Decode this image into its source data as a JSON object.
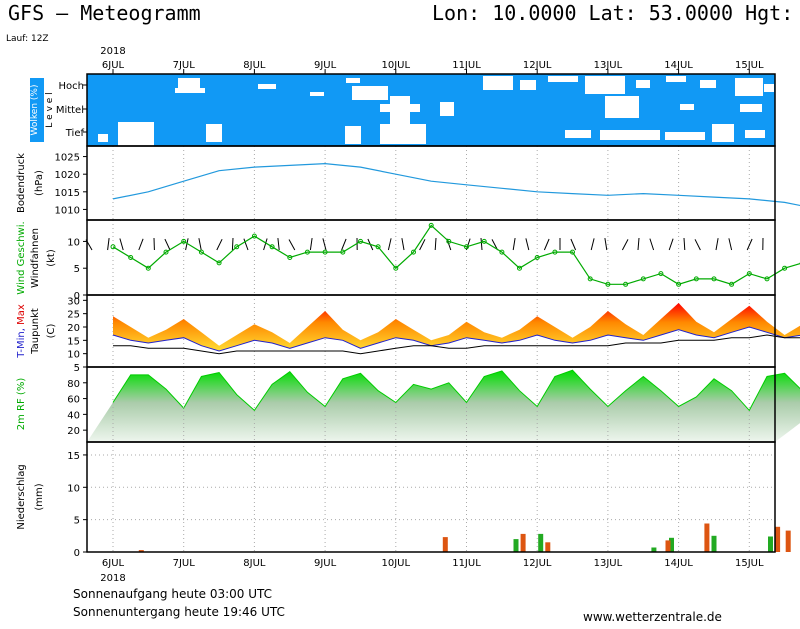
{
  "header": {
    "title": "GFS – Meteogramm",
    "coords": "Lon: 10.0000  Lat: 53.0000  Hgt: 8",
    "run": "Lauf: 12Z",
    "year_top": "2018",
    "year_bottom": "2018"
  },
  "days": [
    "6JUL",
    "7JUL",
    "8JUL",
    "9JUL",
    "10JUL",
    "11JUL",
    "12JUL",
    "13JUL",
    "14JUL",
    "15JUL"
  ],
  "footer": {
    "sunrise": "Sonnenaufgang heute 03:00 UTC",
    "sunset": "Sonnenuntergang heute 19:46 UTC",
    "website": "www.wetterzentrale.de"
  },
  "colors": {
    "cloud_bg": "#1199f5",
    "wind_green": "#00aa00",
    "pressure": "#2299dd",
    "rain_green": "#22aa22",
    "rain_orange": "#dd5511",
    "humidity_green": "#00cc00"
  },
  "chart_data": [
    {
      "type": "heatmap",
      "name": "Wolken (%)",
      "ylabel_main": "Wolken (%)",
      "ylabel_side": "L e v e l",
      "levels": [
        "Hoch",
        "Mittel",
        "Tief"
      ],
      "note": "mostly overcast; white gaps mark clear intervals"
    },
    {
      "type": "line",
      "ylabel_main": "Bodendruck",
      "ylabel_unit": "(hPa)",
      "yticks": [
        1010,
        1015,
        1020,
        1025
      ],
      "ylim": [
        1007,
        1028
      ],
      "x_days": [
        0,
        0.5,
        1.0,
        1.5,
        2.0,
        2.5,
        3.0,
        3.5,
        4.0,
        4.5,
        5.0,
        5.5,
        6.0,
        6.5,
        7.0,
        7.5,
        8.0,
        8.5,
        9.0,
        9.5,
        10.0
      ],
      "values": [
        1013,
        1015,
        1018,
        1021,
        1022,
        1022.5,
        1023,
        1022,
        1020,
        1018,
        1017,
        1016,
        1015,
        1014.5,
        1014,
        1014.5,
        1014,
        1013.5,
        1013,
        1012,
        1010
      ]
    },
    {
      "type": "line",
      "ylabel_main": "Wind Geschwi.",
      "ylabel_sub": "Windfahnen",
      "ylabel_unit": "(kt)",
      "yticks": [
        0,
        5,
        10
      ],
      "ylim": [
        0,
        14
      ],
      "x_days": [
        0,
        0.25,
        0.5,
        0.75,
        1.0,
        1.25,
        1.5,
        1.75,
        2.0,
        2.25,
        2.5,
        2.75,
        3.0,
        3.25,
        3.5,
        3.75,
        4.0,
        4.25,
        4.5,
        4.75,
        5.0,
        5.25,
        5.5,
        5.75,
        6.0,
        6.25,
        6.5,
        6.75,
        7.0,
        7.25,
        7.5,
        7.75,
        8.0,
        8.25,
        8.5,
        8.75,
        9.0,
        9.25,
        9.5,
        9.75,
        10.0
      ],
      "values": [
        9,
        7,
        5,
        8,
        10,
        8,
        6,
        9,
        11,
        9,
        7,
        8,
        8,
        8,
        10,
        9,
        5,
        8,
        13,
        10,
        9,
        10,
        8,
        5,
        7,
        8,
        8,
        3,
        2,
        2,
        3,
        4,
        2,
        3,
        3,
        2,
        4,
        3,
        5,
        6,
        7
      ]
    },
    {
      "type": "area",
      "ylabel_main": "T-Min, Max",
      "ylabel_sub": "Taupunkt",
      "ylabel_unit": "(C)",
      "yticks": [
        5,
        10,
        15,
        20,
        25,
        30
      ],
      "ylim": [
        5,
        32
      ],
      "x_days": [
        0,
        0.25,
        0.5,
        0.75,
        1.0,
        1.25,
        1.5,
        1.75,
        2.0,
        2.25,
        2.5,
        2.75,
        3.0,
        3.25,
        3.5,
        3.75,
        4.0,
        4.25,
        4.5,
        4.75,
        5.0,
        5.25,
        5.5,
        5.75,
        6.0,
        6.25,
        6.5,
        6.75,
        7.0,
        7.25,
        7.5,
        7.75,
        8.0,
        8.25,
        8.5,
        8.75,
        9.0,
        9.25,
        9.5,
        9.75,
        10.0
      ],
      "t_max": [
        24,
        20,
        16,
        19,
        23,
        18,
        13,
        17,
        21,
        18,
        14,
        20,
        26,
        19,
        15,
        18,
        23,
        19,
        15,
        17,
        22,
        18,
        16,
        19,
        24,
        20,
        16,
        20,
        26,
        21,
        17,
        23,
        29,
        22,
        18,
        23,
        28,
        22,
        17,
        21,
        25
      ],
      "t_min": [
        17,
        15,
        14,
        15,
        16,
        13,
        11,
        13,
        15,
        14,
        12,
        14,
        16,
        15,
        12,
        14,
        16,
        15,
        13,
        14,
        16,
        15,
        14,
        15,
        17,
        15,
        14,
        15,
        17,
        16,
        15,
        17,
        19,
        17,
        16,
        18,
        20,
        18,
        16,
        17,
        18
      ],
      "dewpoint": [
        13,
        13,
        12,
        12,
        12,
        11,
        10,
        11,
        11,
        11,
        11,
        11,
        11,
        11,
        10,
        11,
        12,
        13,
        13,
        12,
        12,
        13,
        13,
        13,
        13,
        13,
        13,
        13,
        13,
        14,
        14,
        14,
        15,
        15,
        15,
        16,
        16,
        17,
        16,
        16,
        15
      ]
    },
    {
      "type": "area",
      "ylabel_main": "2m RF (%)",
      "yticks": [
        20,
        40,
        60,
        80
      ],
      "ylim": [
        5,
        100
      ],
      "x_days": [
        0,
        0.25,
        0.5,
        0.75,
        1.0,
        1.25,
        1.5,
        1.75,
        2.0,
        2.25,
        2.5,
        2.75,
        3.0,
        3.25,
        3.5,
        3.75,
        4.0,
        4.25,
        4.5,
        4.75,
        5.0,
        5.25,
        5.5,
        5.75,
        6.0,
        6.25,
        6.5,
        6.75,
        7.0,
        7.25,
        7.5,
        7.75,
        8.0,
        8.25,
        8.5,
        8.75,
        9.0,
        9.25,
        9.5,
        9.75,
        10.0
      ],
      "values": [
        55,
        90,
        90,
        72,
        48,
        88,
        93,
        65,
        45,
        78,
        94,
        68,
        50,
        85,
        92,
        70,
        55,
        78,
        72,
        80,
        55,
        88,
        95,
        70,
        50,
        88,
        96,
        72,
        50,
        70,
        88,
        70,
        50,
        62,
        85,
        70,
        45,
        88,
        92,
        70,
        48
      ]
    },
    {
      "type": "bar",
      "ylabel_main": "Niederschlag",
      "ylabel_unit": "(mm)",
      "yticks": [
        0,
        5,
        10,
        15
      ],
      "ylim": [
        0,
        17
      ],
      "series": [
        {
          "name": "green",
          "x_days": [
            5.7,
            6.05,
            7.65,
            7.9,
            8.5,
            9.3
          ],
          "values": [
            2,
            2.8,
            0.7,
            2.2,
            2.5,
            2.4
          ]
        },
        {
          "name": "orange",
          "x_days": [
            0.4,
            4.7,
            5.8,
            6.15,
            7.85,
            8.4,
            9.4,
            9.55
          ],
          "values": [
            0.3,
            2.3,
            2.8,
            1.5,
            1.8,
            4.4,
            3.9,
            3.3
          ]
        }
      ]
    }
  ]
}
